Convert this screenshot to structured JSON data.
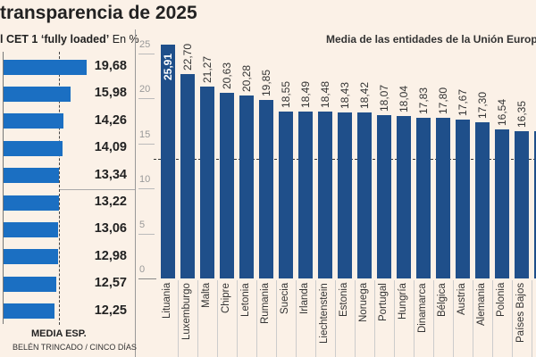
{
  "title": "transparencia de 2025",
  "left_subtitle_bold": "l CET 1 ‘fully loaded’",
  "left_subtitle_unit": "En %",
  "right_subtitle": "Media de las entidades de la Unión Europea",
  "media_label": "MEDIA ESP.",
  "credit": "BELÉN TRINCADO / CINCO DÍAS",
  "colors": {
    "left_bars": "#1b6fc2",
    "right_bars": "#1f4f8a",
    "background": "#fbf1e7"
  },
  "chart_data": [
    {
      "type": "bar",
      "orientation": "horizontal",
      "values": [
        19.68,
        15.98,
        14.26,
        14.09,
        13.34,
        13.22,
        13.06,
        12.98,
        12.57,
        12.25
      ],
      "labels": [
        "19,68",
        "15,98",
        "14,26",
        "14,09",
        "13,34",
        "13,22",
        "13,06",
        "12,98",
        "12,57",
        "12,25"
      ],
      "reference_line": {
        "label": "MEDIA ESP.",
        "value": 13.2
      }
    },
    {
      "type": "bar",
      "title": "Media de las entidades de la Unión Europea",
      "categories": [
        "Lituania",
        "Luxemburgo",
        "Malta",
        "Chipre",
        "Letonia",
        "Rumania",
        "Suecia",
        "Irlanda",
        "Liechtenstein",
        "Estonia",
        "Noruega",
        "Portugal",
        "Hungría",
        "Dinamarca",
        "Bélgica",
        "Austria",
        "Alemania",
        "Polonia",
        "Países Bajos"
      ],
      "values": [
        25.91,
        22.7,
        21.27,
        20.63,
        20.28,
        19.85,
        18.55,
        18.49,
        18.48,
        18.43,
        18.42,
        18.07,
        18.04,
        17.83,
        17.8,
        17.67,
        17.3,
        16.54,
        16.35
      ],
      "labels": [
        "25,91",
        "22,70",
        "21,27",
        "20,63",
        "20,28",
        "19,85",
        "18,55",
        "18,49",
        "18,48",
        "18,43",
        "18,42",
        "18,07",
        "18,04",
        "17,83",
        "17,80",
        "17,67",
        "17,30",
        "16,54",
        "16,35"
      ],
      "yticks": [
        "0",
        "5",
        "10",
        "15",
        "20",
        "25"
      ],
      "ylim": [
        0,
        26
      ],
      "reference_line": {
        "value": 13.4
      }
    }
  ]
}
